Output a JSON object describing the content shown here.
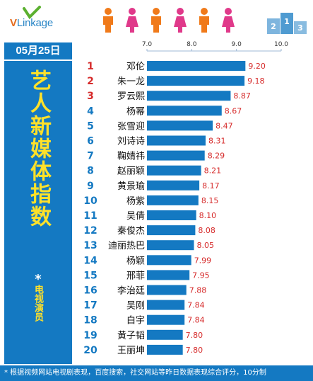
{
  "brand": {
    "logo_text_v": "V",
    "logo_text_rest": "Linkage"
  },
  "date": "05月25日",
  "side": {
    "title": "艺人新媒体指数",
    "star": "*",
    "subtitle": "电视演员"
  },
  "footer": {
    "note": "* 根据视频网站电视剧表现，百度搜索，社交网站等昨日数据表现综合评分，10分制"
  },
  "colors": {
    "brand_blue": "#1479c2",
    "bar_blue": "#1479c2",
    "rank_red": "#d62b2b",
    "rank_blue": "#1479c2",
    "value_red": "#d62b2b",
    "title_yellow": "#ffe12a",
    "person_orange": "#f07a1a",
    "person_pink": "#e0398a"
  },
  "icons": [
    "vlinkage-logo-icon",
    "person-icon",
    "podium-icon"
  ],
  "chart_data": {
    "type": "bar",
    "orientation": "horizontal",
    "title": "",
    "xlabel": "",
    "ylabel": "",
    "xlim": [
      7.0,
      10.0
    ],
    "ticks": [
      "7.0",
      "8.0",
      "9.0",
      "10.0"
    ],
    "tick_values": [
      7.0,
      8.0,
      9.0,
      10.0
    ],
    "grid": false,
    "ranks": [
      "1",
      "2",
      "3",
      "4",
      "5",
      "6",
      "7",
      "8",
      "9",
      "10",
      "11",
      "12",
      "13",
      "14",
      "15",
      "16",
      "17",
      "18",
      "19",
      "20"
    ],
    "categories": [
      "邓伦",
      "朱一龙",
      "罗云熙",
      "杨幂",
      "张雪迎",
      "刘诗诗",
      "鞠婧祎",
      "赵丽颖",
      "黄景瑜",
      "杨紫",
      "吴倩",
      "秦俊杰",
      "迪丽热巴",
      "杨颖",
      "邢菲",
      "李治廷",
      "吴刚",
      "白宇",
      "黄子韬",
      "王丽坤"
    ],
    "values": [
      9.2,
      9.18,
      8.87,
      8.67,
      8.47,
      8.31,
      8.29,
      8.21,
      8.17,
      8.15,
      8.1,
      8.08,
      8.05,
      7.99,
      7.95,
      7.88,
      7.84,
      7.84,
      7.8,
      7.8
    ],
    "value_labels": [
      "9.20",
      "9.18",
      "8.87",
      "8.67",
      "8.47",
      "8.31",
      "8.29",
      "8.21",
      "8.17",
      "8.15",
      "8.10",
      "8.08",
      "8.05",
      "7.99",
      "7.95",
      "7.88",
      "7.84",
      "7.84",
      "7.80",
      "7.80"
    ]
  }
}
